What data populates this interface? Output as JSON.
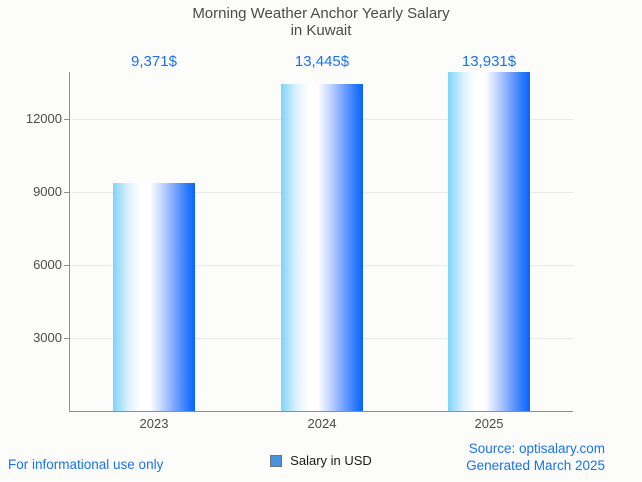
{
  "header": {
    "title_line1": "Morning Weather Anchor Yearly Salary",
    "title_line2": "in Kuwait"
  },
  "chart_data": {
    "type": "bar",
    "title": "Morning Weather Anchor Yearly Salary in Kuwait",
    "categories": [
      "2023",
      "2024",
      "2025"
    ],
    "series": [
      {
        "name": "Salary in USD",
        "values": [
          9371,
          13445,
          13931
        ]
      }
    ],
    "value_labels": [
      "9,371$",
      "13,445$",
      "13,931$"
    ],
    "xlabel": "",
    "ylabel": "",
    "ylim": [
      0,
      13931
    ],
    "yticks": [
      3000,
      6000,
      9000,
      12000
    ],
    "ytick_labels": [
      "3000",
      "6000",
      "9000",
      "12000"
    ],
    "grid": true,
    "legend_position": "bottom",
    "bar_gradient": [
      "#7ed3fa",
      "#ffffff",
      "#0b63fc"
    ]
  },
  "legend": {
    "label": "Salary in USD",
    "marker_color": "#4a90e2"
  },
  "footer": {
    "left_note": "For informational use only",
    "source_line1": "Source: optisalary.com",
    "source_line2": "Generated March 2025"
  },
  "colors": {
    "accent_blue": "#1a73e8",
    "text_gray": "#4b4b4b",
    "axis_gray": "#8f8f8f",
    "gridline": "#e9e9e9",
    "background": "#fcfcfb"
  }
}
